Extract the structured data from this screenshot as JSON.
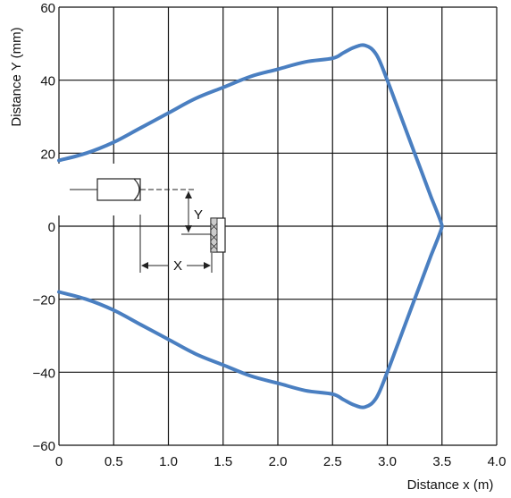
{
  "chart_data": {
    "type": "line",
    "title": "",
    "xlabel": "Distance x (m)",
    "ylabel": "Distance Y (mm)",
    "xlim": [
      0,
      4.0
    ],
    "ylim": [
      -60,
      60
    ],
    "x_ticks": [
      "0",
      "0.5",
      "1.0",
      "1.5",
      "2.0",
      "2.5",
      "3.0",
      "3.5",
      "4.0"
    ],
    "y_ticks": [
      "60",
      "40",
      "20",
      "0",
      "−20",
      "−40",
      "−60"
    ],
    "x_tick_values": [
      0,
      0.5,
      1.0,
      1.5,
      2.0,
      2.5,
      3.0,
      3.5,
      4.0
    ],
    "y_tick_values": [
      60,
      40,
      20,
      0,
      -20,
      -40,
      -60
    ],
    "grid": true,
    "line_color": "#4a7fc1",
    "series": [
      {
        "name": "",
        "x": [
          0,
          0.25,
          0.5,
          0.75,
          1.0,
          1.25,
          1.5,
          1.75,
          2.0,
          2.25,
          2.5,
          2.6,
          2.7,
          2.8,
          2.9,
          3.0,
          3.1,
          3.2,
          3.3,
          3.4,
          3.5,
          3.4,
          3.3,
          3.2,
          3.1,
          3.0,
          2.9,
          2.8,
          2.7,
          2.6,
          2.5,
          2.25,
          2.0,
          1.75,
          1.5,
          1.25,
          1.0,
          0.75,
          0.5,
          0.25,
          0
        ],
        "y": [
          18,
          20,
          23,
          27,
          31,
          35,
          38,
          41,
          43,
          45,
          46,
          47.5,
          49,
          49.5,
          47,
          40,
          32,
          24,
          16,
          8,
          0,
          -8,
          -16,
          -24,
          -32,
          -40,
          -47,
          -49.5,
          -49,
          -47.5,
          -46,
          -45,
          -43,
          -41,
          -38,
          -35,
          -31,
          -27,
          -23,
          -20,
          -18
        ]
      }
    ],
    "inset_labels": [
      "Y",
      "X"
    ]
  }
}
